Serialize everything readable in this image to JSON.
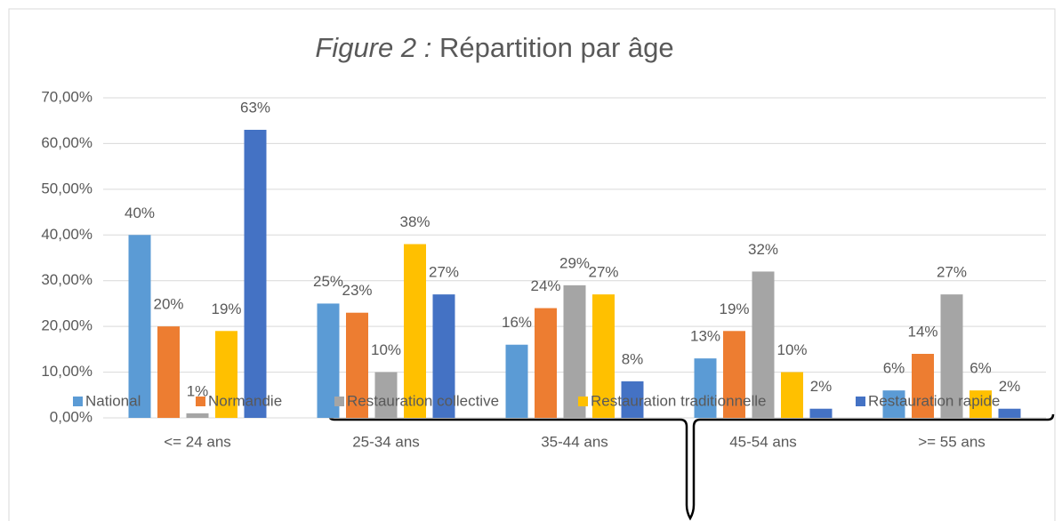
{
  "chart_data": {
    "type": "bar",
    "title_prefix": "Figure 2 :",
    "title": "Répartition par âge",
    "categories": [
      "<= 24 ans",
      "25-34 ans",
      "35-44 ans",
      "45-54 ans",
      ">= 55 ans"
    ],
    "series": [
      {
        "name": "National",
        "color": "#5b9bd5",
        "values": [
          40,
          25,
          16,
          13,
          6
        ],
        "value_labels": [
          "40%",
          "25%",
          "16%",
          "13%",
          "6%"
        ]
      },
      {
        "name": "Normandie",
        "color": "#ed7d31",
        "values": [
          20,
          23,
          24,
          19,
          14
        ],
        "value_labels": [
          "20%",
          "23%",
          "24%",
          "19%",
          "14%"
        ]
      },
      {
        "name": "Restauration collective",
        "color": "#a5a5a5",
        "values": [
          1,
          10,
          29,
          32,
          27
        ],
        "value_labels": [
          "1%",
          "10%",
          "29%",
          "32%",
          "27%"
        ]
      },
      {
        "name": "Restauration traditionnelle",
        "color": "#ffc000",
        "values": [
          19,
          38,
          27,
          10,
          6
        ],
        "value_labels": [
          "19%",
          "38%",
          "27%",
          "10%",
          "6%"
        ]
      },
      {
        "name": "Restauration rapide",
        "color": "#4472c4",
        "values": [
          63,
          27,
          8,
          2,
          2
        ],
        "value_labels": [
          "63%",
          "27%",
          "8%",
          "2%",
          "2%"
        ]
      }
    ],
    "ylim": [
      0,
      70
    ],
    "yticks": [
      {
        "value": 0,
        "label": "0,00%"
      },
      {
        "value": 10,
        "label": "10,00%"
      },
      {
        "value": 20,
        "label": "20,00%"
      },
      {
        "value": 30,
        "label": "30,00%"
      },
      {
        "value": 40,
        "label": "40,00%"
      },
      {
        "value": 50,
        "label": "50,00%"
      },
      {
        "value": 60,
        "label": "60,00%"
      },
      {
        "value": 70,
        "label": "70,00%"
      }
    ],
    "grid": true,
    "legend": "bottom"
  }
}
